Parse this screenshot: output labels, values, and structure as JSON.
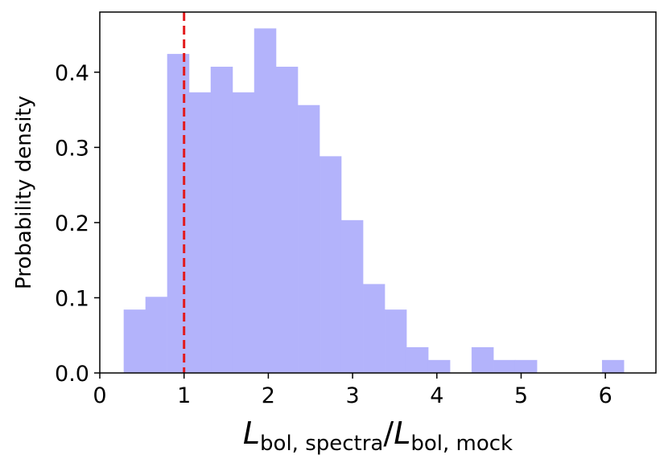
{
  "chart_data": {
    "type": "histogram",
    "title": "",
    "xlabel": {
      "symbol_1": "L",
      "subscript_1": "bol, spectra",
      "separator": "/",
      "symbol_2": "L",
      "subscript_2": "bol, mock"
    },
    "ylabel": "Probability density",
    "xlim": [
      0,
      6.6
    ],
    "ylim": [
      0,
      0.48
    ],
    "x_ticks": [
      0,
      1,
      2,
      3,
      4,
      5,
      6
    ],
    "x_tick_labels": [
      "0",
      "1",
      "2",
      "3",
      "4",
      "5",
      "6"
    ],
    "y_ticks": [
      0.0,
      0.1,
      0.2,
      0.3,
      0.4
    ],
    "y_tick_labels": [
      "0.0",
      "0.1",
      "0.2",
      "0.3",
      "0.4"
    ],
    "grid": false,
    "bin_edges": [
      0.286,
      0.544,
      0.802,
      1.06,
      1.318,
      1.576,
      1.834,
      2.092,
      2.35,
      2.608,
      2.866,
      3.124,
      3.382,
      3.64,
      3.898,
      4.156,
      4.414,
      4.672,
      4.93,
      5.188,
      5.446,
      5.704,
      5.962,
      6.22
    ],
    "densities": [
      0.084,
      0.101,
      0.424,
      0.373,
      0.407,
      0.373,
      0.458,
      0.407,
      0.356,
      0.288,
      0.203,
      0.118,
      0.084,
      0.034,
      0.017,
      0.0,
      0.034,
      0.017,
      0.017,
      0.0,
      0.0,
      0.0,
      0.017
    ],
    "bar_color": "#b3b3fb",
    "reference_line": {
      "x": 1,
      "color": "#e31a1c",
      "style": "dashed"
    }
  }
}
